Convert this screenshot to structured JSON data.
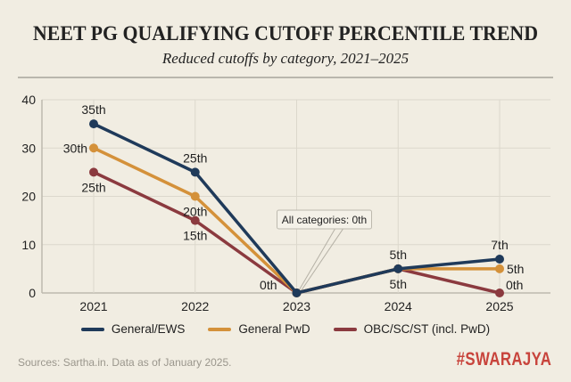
{
  "chart_data": {
    "type": "line",
    "title": "NEET PG QUALIFYING CUTOFF PERCENTILE TREND",
    "subtitle": "Reduced cutoffs by category, 2021–2025",
    "xlabel": "",
    "ylabel": "",
    "categories": [
      "2021",
      "2022",
      "2023",
      "2024",
      "2025"
    ],
    "ylim": [
      0,
      40
    ],
    "yticks": [
      0,
      10,
      20,
      30,
      40
    ],
    "grid": true,
    "legend_position": "bottom",
    "series": [
      {
        "name": "General/EWS",
        "color": "#1f3a5a",
        "values": [
          35,
          25,
          0,
          5,
          7
        ],
        "labels": [
          "35th",
          "25th",
          "",
          "5th",
          "7th"
        ],
        "label_pos": [
          "above",
          "above",
          "",
          "above",
          "above"
        ]
      },
      {
        "name": "General PwD",
        "color": "#d4913a",
        "values": [
          30,
          20,
          0,
          5,
          5
        ],
        "labels": [
          "30th",
          "20th",
          "0th",
          "",
          "5th"
        ],
        "label_pos": [
          "left",
          "below",
          "left",
          "",
          "right"
        ]
      },
      {
        "name": "OBC/SC/ST (incl. PwD)",
        "color": "#8b3a3f",
        "values": [
          25,
          15,
          0,
          5,
          0
        ],
        "labels": [
          "25th",
          "15th",
          "",
          "5th",
          "0th"
        ],
        "label_pos": [
          "below",
          "below",
          "",
          "below",
          "above-right"
        ]
      }
    ],
    "annotation": {
      "text": "All categories: 0th",
      "category": "2023",
      "value": 0
    }
  },
  "footer": {
    "source": "Sources: Sartha.in. Data as of January 2025.",
    "brand": "#SWARAJYA"
  }
}
